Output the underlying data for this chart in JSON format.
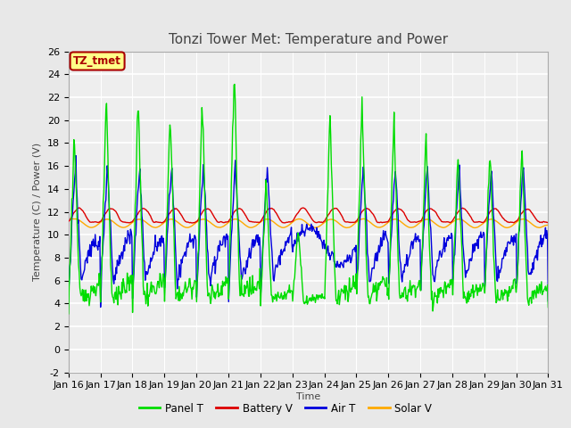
{
  "title": "Tonzi Tower Met: Temperature and Power",
  "xlabel": "Time",
  "ylabel": "Temperature (C) / Power (V)",
  "ylim": [
    -2,
    26
  ],
  "yticks": [
    -2,
    0,
    2,
    4,
    6,
    8,
    10,
    12,
    14,
    16,
    18,
    20,
    22,
    24,
    26
  ],
  "x_tick_labels": [
    "Jan 16",
    "Jan 17",
    "Jan 18",
    "Jan 19",
    "Jan 20",
    "Jan 21",
    "Jan 22",
    "Jan 23",
    "Jan 24",
    "Jan 25",
    "Jan 26",
    "Jan 27",
    "Jan 28",
    "Jan 29",
    "Jan 30",
    "Jan 31"
  ],
  "annotation_text": "TZ_tmet",
  "annotation_color": "#aa0000",
  "annotation_bg": "#ffff88",
  "colors": {
    "panel_t": "#00dd00",
    "battery_v": "#dd0000",
    "air_t": "#0000dd",
    "solar_v": "#ffaa00"
  },
  "legend_labels": [
    "Panel T",
    "Battery V",
    "Air T",
    "Solar V"
  ],
  "background_color": "#e8e8e8",
  "plot_bg": "#eeeeee",
  "grid_color": "#ffffff",
  "title_fontsize": 11,
  "label_fontsize": 8,
  "tick_fontsize": 8,
  "figwidth": 6.4,
  "figheight": 4.8,
  "dpi": 100
}
